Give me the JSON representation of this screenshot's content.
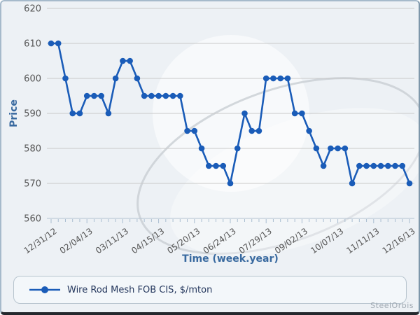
{
  "frame": {
    "watermark_brand": "SteelOrbis"
  },
  "chart_data": {
    "type": "line",
    "title": "",
    "xlabel": "Time (week.year)",
    "ylabel": "Price",
    "ylim": [
      560,
      620
    ],
    "yticks": [
      560,
      570,
      580,
      590,
      600,
      610,
      620
    ],
    "x_ticklabels": [
      "12/31/12",
      "02/04/13",
      "03/11/13",
      "04/15/13",
      "05/20/13",
      "06/24/13",
      "07/29/13",
      "09/02/13",
      "10/07/13",
      "11/11/13",
      "12/16/13"
    ],
    "grid": "horizontal",
    "legend_position": "bottom",
    "n_points": 51,
    "series": [
      {
        "name": "Wire Rod Mesh FOB CIS, $/mton",
        "color": "#1a5cb8",
        "values": [
          610,
          610,
          600,
          590,
          590,
          595,
          595,
          595,
          590,
          600,
          605,
          605,
          600,
          595,
          595,
          595,
          595,
          595,
          595,
          585,
          585,
          580,
          575,
          575,
          575,
          570,
          580,
          590,
          585,
          585,
          600,
          600,
          600,
          600,
          590,
          590,
          585,
          580,
          575,
          580,
          580,
          580,
          570,
          575,
          575,
          575,
          575,
          575,
          575,
          575,
          570
        ]
      }
    ],
    "colors": {
      "grid_line": "#c9c9c9",
      "axis_line": "#b3c2d1",
      "tick_mark": "#a9bdd0",
      "tick_label": "#555555",
      "axis_title": "#38699f"
    }
  }
}
